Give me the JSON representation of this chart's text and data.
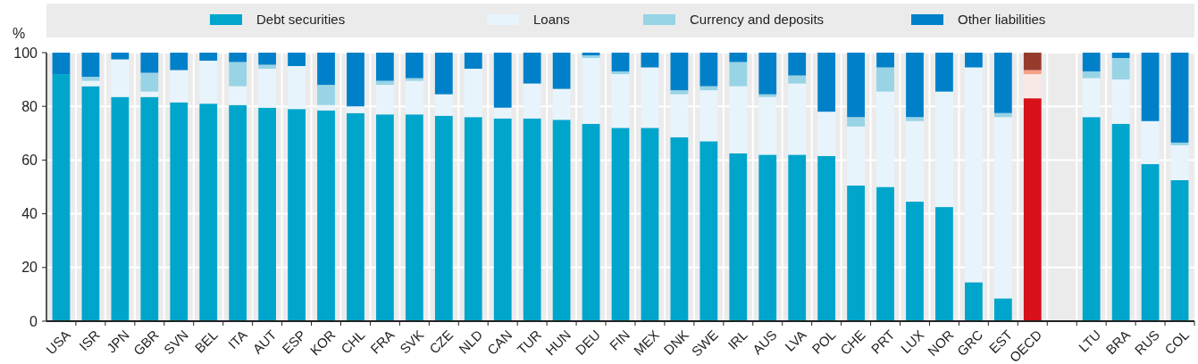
{
  "chart_data": {
    "type": "bar",
    "stacked": true,
    "ylabel": "%",
    "ylim": [
      0,
      100
    ],
    "yticks": [
      0,
      20,
      40,
      60,
      80,
      100
    ],
    "grid": true,
    "legend": "top",
    "categories": [
      "USA",
      "ISR",
      "JPN",
      "GBR",
      "SVN",
      "BEL",
      "ITA",
      "AUT",
      "ESP",
      "KOR",
      "CHL",
      "FRA",
      "SVK",
      "CZE",
      "NLD",
      "CAN",
      "TUR",
      "HUN",
      "DEU",
      "FIN",
      "MEX",
      "DNK",
      "SWE",
      "IRL",
      "AUS",
      "LVA",
      "POL",
      "CHE",
      "PRT",
      "LUX",
      "NOR",
      "GRC",
      "EST",
      "OECD",
      null,
      "LTU",
      "BRA",
      "RUS",
      "COL"
    ],
    "series": [
      {
        "name": "Debt securities",
        "color": "#00a5cc",
        "colors": [
          "#00a5cc",
          "#00a5cc",
          "#00a5cc",
          "#00a5cc",
          "#00a5cc",
          "#00a5cc",
          "#00a5cc",
          "#00a5cc",
          "#00a5cc",
          "#00a5cc",
          "#00a5cc",
          "#00a5cc",
          "#00a5cc",
          "#00a5cc",
          "#00a5cc",
          "#00a5cc",
          "#00a5cc",
          "#00a5cc",
          "#00a5cc",
          "#00a5cc",
          "#00a5cc",
          "#00a5cc",
          "#00a5cc",
          "#00a5cc",
          "#00a5cc",
          "#00a5cc",
          "#00a5cc",
          "#00a5cc",
          "#00a5cc",
          "#00a5cc",
          "#00a5cc",
          "#00a5cc",
          "#00a5cc",
          "#d7101a",
          null,
          "#00a5cc",
          "#00a5cc",
          "#00a5cc",
          "#00a5cc"
        ],
        "values": [
          92,
          87.5,
          83.5,
          83.5,
          81.5,
          81,
          80.5,
          79.5,
          79,
          78.5,
          77.5,
          77,
          77,
          76.5,
          76,
          75.5,
          75.5,
          75,
          73.5,
          72,
          72,
          68.5,
          67,
          62.5,
          62,
          62,
          61.5,
          50.5,
          50,
          44.5,
          42.5,
          14.5,
          8.5,
          83,
          null,
          76,
          73.5,
          58.5,
          52.5
        ]
      },
      {
        "name": "Loans",
        "color": "#e8f4fc",
        "colors": [
          "#e8f4fc",
          "#e8f4fc",
          "#e8f4fc",
          "#e8f4fc",
          "#e8f4fc",
          "#e8f4fc",
          "#e8f4fc",
          "#e8f4fc",
          "#e8f4fc",
          "#e8f4fc",
          "#e8f4fc",
          "#e8f4fc",
          "#e8f4fc",
          "#e8f4fc",
          "#e8f4fc",
          "#e8f4fc",
          "#e8f4fc",
          "#e8f4fc",
          "#e8f4fc",
          "#e8f4fc",
          "#e8f4fc",
          "#e8f4fc",
          "#e8f4fc",
          "#e8f4fc",
          "#e8f4fc",
          "#e8f4fc",
          "#e8f4fc",
          "#e8f4fc",
          "#e8f4fc",
          "#e8f4fc",
          "#e8f4fc",
          "#e8f4fc",
          "#e8f4fc",
          "#f9e9e6",
          null,
          "#e8f4fc",
          "#e8f4fc",
          "#e8f4fc",
          "#e8f4fc"
        ],
        "values": [
          0,
          2,
          14,
          2,
          12,
          16,
          7,
          14.5,
          16,
          2,
          2.5,
          11,
          12.5,
          8,
          18,
          4,
          13,
          11.5,
          24.5,
          20,
          22.5,
          16,
          19,
          25,
          21.5,
          26.5,
          16.5,
          22,
          35.5,
          30,
          43,
          80,
          67.5,
          9,
          null,
          14.5,
          16.5,
          16,
          13
        ]
      },
      {
        "name": "Currency and deposits",
        "color": "#98d4e6",
        "colors": [
          "#98d4e6",
          "#98d4e6",
          "#98d4e6",
          "#98d4e6",
          "#98d4e6",
          "#98d4e6",
          "#98d4e6",
          "#98d4e6",
          "#98d4e6",
          "#98d4e6",
          "#98d4e6",
          "#98d4e6",
          "#98d4e6",
          "#98d4e6",
          "#98d4e6",
          "#98d4e6",
          "#98d4e6",
          "#98d4e6",
          "#98d4e6",
          "#98d4e6",
          "#98d4e6",
          "#98d4e6",
          "#98d4e6",
          "#98d4e6",
          "#98d4e6",
          "#98d4e6",
          "#98d4e6",
          "#98d4e6",
          "#98d4e6",
          "#98d4e6",
          "#98d4e6",
          "#98d4e6",
          "#98d4e6",
          "#f4a085",
          null,
          "#98d4e6",
          "#98d4e6",
          "#98d4e6",
          "#98d4e6"
        ],
        "values": [
          0,
          1.5,
          0,
          7,
          0,
          0,
          9,
          1.5,
          0,
          7.5,
          0,
          1.5,
          1,
          0,
          0,
          0,
          0,
          0,
          1,
          1,
          0,
          1.5,
          1.5,
          9,
          1,
          3,
          0,
          3.5,
          9,
          1.5,
          0,
          0,
          1.5,
          1.5,
          null,
          2.5,
          8,
          0,
          1
        ]
      },
      {
        "name": "Other liabilities",
        "color": "#0080c9",
        "colors": [
          "#0080c9",
          "#0080c9",
          "#0080c9",
          "#0080c9",
          "#0080c9",
          "#0080c9",
          "#0080c9",
          "#0080c9",
          "#0080c9",
          "#0080c9",
          "#0080c9",
          "#0080c9",
          "#0080c9",
          "#0080c9",
          "#0080c9",
          "#0080c9",
          "#0080c9",
          "#0080c9",
          "#0080c9",
          "#0080c9",
          "#0080c9",
          "#0080c9",
          "#0080c9",
          "#0080c9",
          "#0080c9",
          "#0080c9",
          "#0080c9",
          "#0080c9",
          "#0080c9",
          "#0080c9",
          "#0080c9",
          "#0080c9",
          "#0080c9",
          "#963c2d",
          null,
          "#0080c9",
          "#0080c9",
          "#0080c9",
          "#0080c9"
        ],
        "values": [
          8,
          9,
          2.5,
          7.5,
          6.5,
          3,
          3.5,
          4.5,
          5,
          12,
          20,
          10.5,
          9.5,
          15.5,
          6,
          20.5,
          11.5,
          13.5,
          1,
          7,
          5.5,
          14,
          12.5,
          3.5,
          15.5,
          8.5,
          22,
          24,
          5.5,
          24,
          14.5,
          5.5,
          22.5,
          6.5,
          null,
          7,
          2,
          25.5,
          33.5
        ]
      }
    ]
  }
}
